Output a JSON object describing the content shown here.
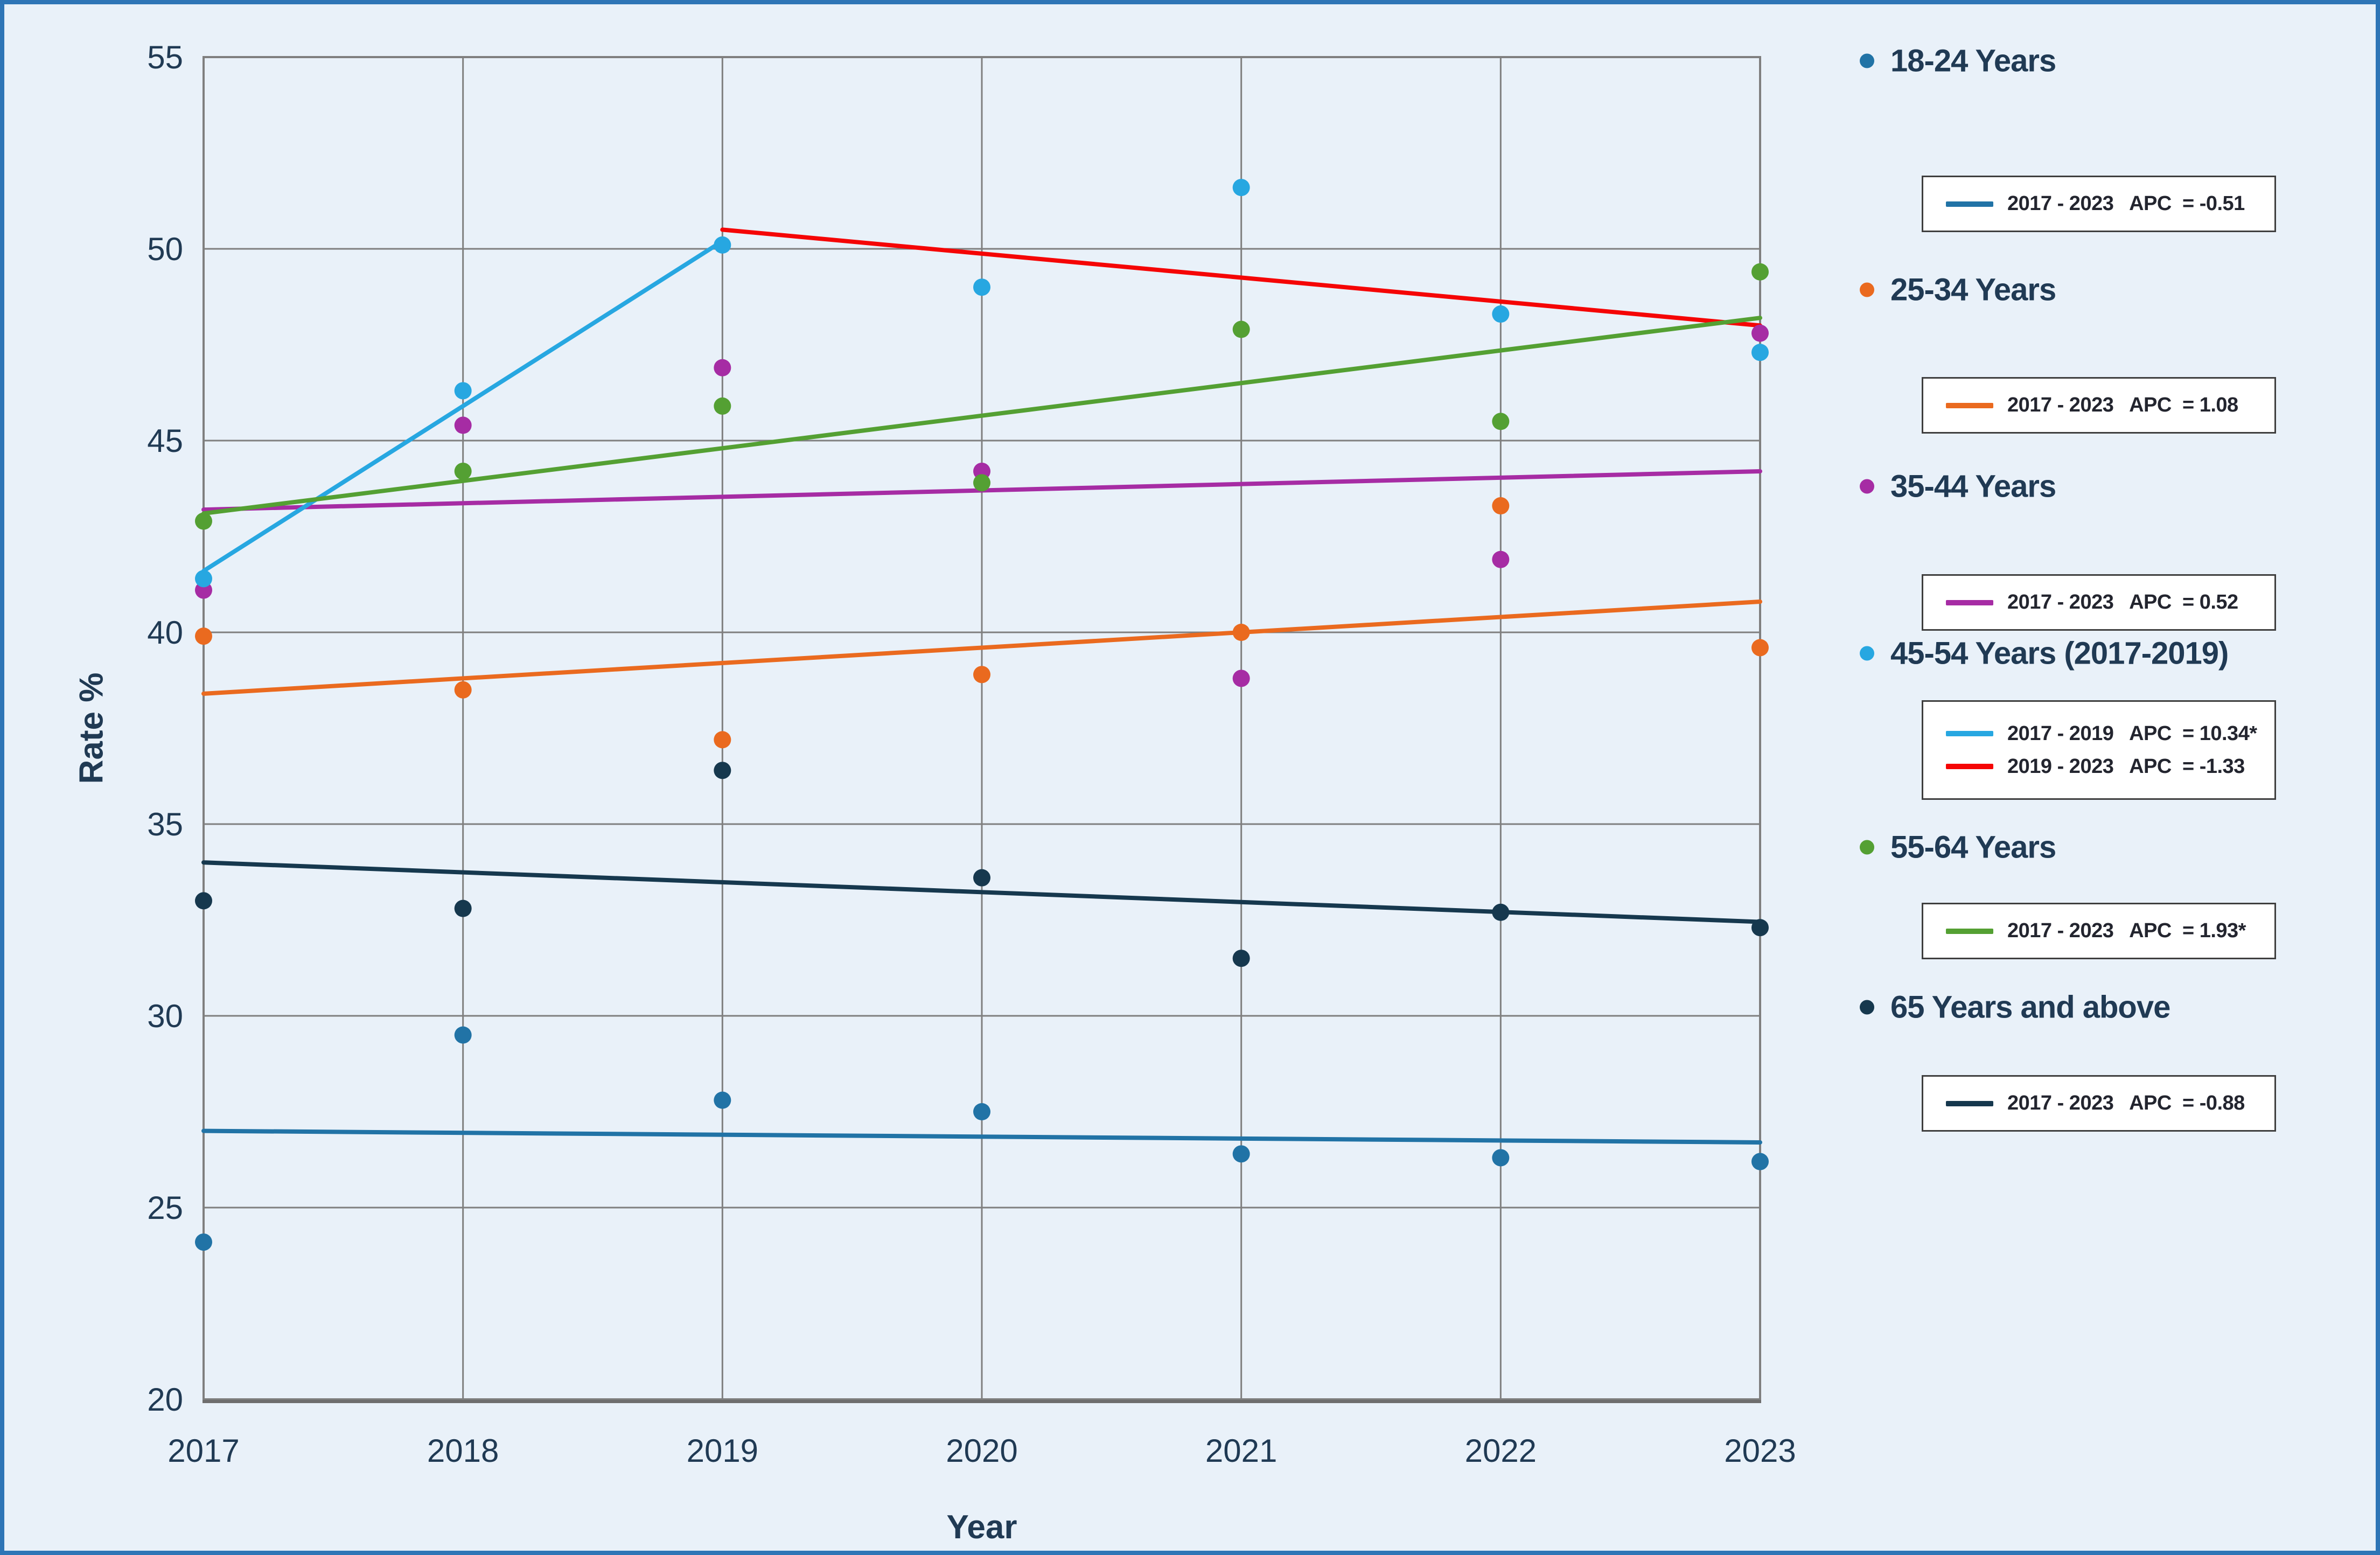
{
  "figure": {
    "ylabel": "Rate %",
    "xlabel": "Year"
  },
  "axes": {
    "y_ticks": [
      55,
      50,
      45,
      40,
      35,
      30,
      25,
      20
    ],
    "x_ticks": [
      2017,
      2018,
      2019,
      2020,
      2021,
      2022,
      2023
    ]
  },
  "colors": {
    "background": "#E9F1F9",
    "frame_border": "#2E75B6",
    "gridline": "#7F7F7F",
    "axis_text": "#203A54",
    "series_18_24": "#2173A6",
    "series_25_34": "#EA6A1F",
    "series_35_44": "#A62CA4",
    "series_45_54_scatter": "#27A7E1",
    "series_45_54_trend2": "#F50505",
    "series_55_64": "#54A033",
    "series_65_plus": "#16384E"
  },
  "chart_data": {
    "type": "scatter",
    "title": "",
    "xlabel": "Year",
    "ylabel": "Rate %",
    "x": [
      2017,
      2018,
      2019,
      2020,
      2021,
      2022,
      2023
    ],
    "ylim": [
      20,
      55
    ],
    "ytick_step": 5,
    "grid": true,
    "legend_position": "right",
    "series": [
      {
        "name": "18-24 Years",
        "color": "#2173A6",
        "values": [
          24.1,
          29.5,
          27.8,
          27.5,
          26.4,
          26.3,
          26.2
        ],
        "trends": [
          {
            "x": [
              2017,
              2023
            ],
            "y": [
              27.0,
              26.7
            ],
            "color": "#2173A6",
            "label": "2017 - 2023  APC = -0.51"
          }
        ]
      },
      {
        "name": "25-34 Years",
        "color": "#EA6A1F",
        "values": [
          39.9,
          38.5,
          37.2,
          38.9,
          40.0,
          43.3,
          39.6
        ],
        "trends": [
          {
            "x": [
              2017,
              2023
            ],
            "y": [
              38.4,
              40.8
            ],
            "color": "#EA6A1F",
            "label": "2017 - 2023  APC = 1.08"
          }
        ]
      },
      {
        "name": "35-44 Years",
        "color": "#A62CA4",
        "values": [
          41.1,
          45.4,
          46.9,
          44.2,
          38.8,
          41.9,
          47.8
        ],
        "trends": [
          {
            "x": [
              2017,
              2023
            ],
            "y": [
              43.2,
              44.2
            ],
            "color": "#A62CA4",
            "label": "2017 - 2023  APC = 0.52"
          }
        ]
      },
      {
        "name": "45-54 Years (2017-2019)",
        "color": "#27A7E1",
        "values": [
          41.4,
          46.3,
          50.1,
          49.0,
          51.6,
          48.3,
          47.3
        ],
        "trends": [
          {
            "x": [
              2017,
              2019
            ],
            "y": [
              41.6,
              50.2
            ],
            "color": "#27A7E1",
            "label": "2017 - 2019  APC = 10.34*"
          },
          {
            "x": [
              2019,
              2023
            ],
            "y": [
              50.5,
              48.0
            ],
            "color": "#F50505",
            "label": "2019 - 2023  APC = -1.33"
          }
        ]
      },
      {
        "name": "55-64 Years",
        "color": "#54A033",
        "values": [
          42.9,
          44.2,
          45.9,
          43.9,
          47.9,
          45.5,
          49.4
        ],
        "trends": [
          {
            "x": [
              2017,
              2023
            ],
            "y": [
              43.1,
              48.2
            ],
            "color": "#54A033",
            "label": "2017 - 2023  APC = 1.93*"
          }
        ]
      },
      {
        "name": "65 Years and above",
        "color": "#16384E",
        "values": [
          33.0,
          32.8,
          36.4,
          33.6,
          31.5,
          32.7,
          32.3
        ],
        "trends": [
          {
            "x": [
              2017,
              2023
            ],
            "y": [
              34.0,
              32.45
            ],
            "color": "#16384E",
            "label": "2017 - 2023  APC = -0.88"
          }
        ]
      }
    ]
  },
  "legend": {
    "entries": [
      {
        "label": "18-24 Years",
        "dot_color": "#2173A6",
        "rows": [
          {
            "color": "#2173A6",
            "text": "2017 - 2023   APC  = -0.51"
          }
        ]
      },
      {
        "label": "25-34 Years",
        "dot_color": "#EA6A1F",
        "rows": [
          {
            "color": "#EA6A1F",
            "text": "2017 - 2023   APC  = 1.08"
          }
        ]
      },
      {
        "label": "35-44 Years",
        "dot_color": "#A62CA4",
        "rows": [
          {
            "color": "#A62CA4",
            "text": "2017 - 2023   APC  = 0.52"
          }
        ]
      },
      {
        "label": "45-54 Years (2017-2019)",
        "dot_color": "#27A7E1",
        "rows": [
          {
            "color": "#27A7E1",
            "text": "2017 - 2019   APC  = 10.34*"
          },
          {
            "color": "#F50505",
            "text": "2019 - 2023   APC  = -1.33"
          }
        ]
      },
      {
        "label": "55-64 Years",
        "dot_color": "#54A033",
        "rows": [
          {
            "color": "#54A033",
            "text": "2017 - 2023   APC  = 1.93*"
          }
        ]
      },
      {
        "label": "65 Years and above",
        "dot_color": "#16384E",
        "rows": [
          {
            "color": "#16384E",
            "text": "2017 - 2023   APC  = -0.88"
          }
        ]
      }
    ]
  }
}
